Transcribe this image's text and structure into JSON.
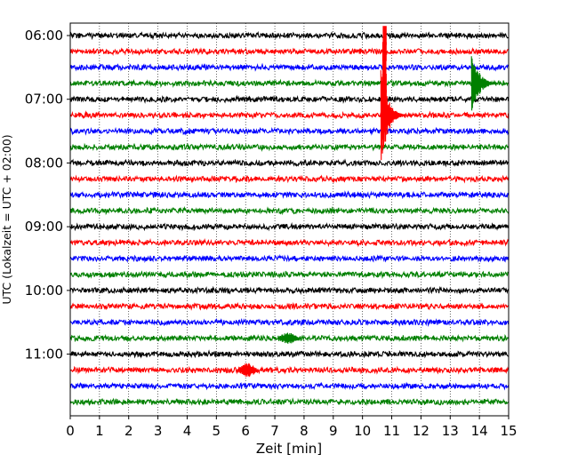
{
  "chart_data": {
    "type": "line",
    "title": "",
    "xlabel": "Zeit  [min]",
    "ylabel": "UTC (Lokalzeit = UTC + 02:00)",
    "xlim": [
      0,
      15
    ],
    "x_ticks": [
      0,
      1,
      2,
      3,
      4,
      5,
      6,
      7,
      8,
      9,
      10,
      11,
      12,
      13,
      14,
      15
    ],
    "y_ticks": [
      "06:00",
      "07:00",
      "08:00",
      "09:00",
      "10:00",
      "11:00"
    ],
    "grid": "vertical dotted",
    "trace_interval_minutes": 15,
    "trace_start": "06:00",
    "trace_end": "11:45",
    "trace_color_cycle": [
      "#000000",
      "#ff0000",
      "#0000ff",
      "#008000"
    ],
    "events": [
      {
        "row": 0,
        "time_min": 10.75,
        "amplitude": 9,
        "color": "#ff0000",
        "type": "clipped"
      },
      {
        "row": 1,
        "time_min": 10.75,
        "amplitude": 9,
        "color": "#ff0000",
        "type": "clipped"
      },
      {
        "row": 2,
        "time_min": 10.75,
        "amplitude": 9,
        "color": "#ff0000",
        "type": "clipped"
      },
      {
        "row": 3,
        "time_min": 10.75,
        "amplitude": 9,
        "color": "#ff0000",
        "type": "clipped"
      },
      {
        "row": 4,
        "time_min": 10.75,
        "amplitude": 9,
        "color": "#ff0000",
        "type": "clipped"
      },
      {
        "row": 5,
        "time_min": 10.75,
        "amplitude": 60,
        "color": "#ff0000",
        "type": "quake"
      },
      {
        "row": 3,
        "time_min": 13.85,
        "amplitude": 45,
        "color": "#008000",
        "type": "quake"
      },
      {
        "row": 21,
        "time_min": 6.0,
        "amplitude": 8,
        "color": "#ff0000",
        "type": "burst"
      },
      {
        "row": 19,
        "time_min": 7.4,
        "amplitude": 7,
        "color": "#008000",
        "type": "burst"
      }
    ]
  }
}
